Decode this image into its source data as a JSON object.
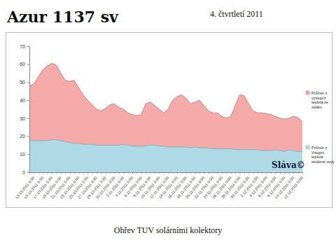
{
  "chart_data": {
    "type": "area",
    "title": "Azur 1137 sv",
    "subtitle": "4. čtvrtletí 2011",
    "x_label": "Ohřev TUV solárními kolektory",
    "annotation": "Sláva©",
    "categories": [
      "13.10.2011 0:00",
      null,
      "15.10.2011 0:00",
      null,
      "17.10.2011 0:00",
      null,
      "19.10.2011 0:00",
      null,
      "21.10.2011 0:00",
      null,
      "23.10.2011 0:00",
      null,
      "25.10.2011 0:00",
      null,
      "27.10.2011 0:00",
      null,
      "29.10.2011 0:00",
      null,
      "31.10.2011 0:00",
      null,
      "2.11.2011 0:00",
      null,
      "4.11.2011 0:00",
      null,
      "6.11.2011 0:00",
      null,
      "8.11.2011 0:00",
      null,
      "10.11.2011 0:00",
      null,
      "12.11.2011 0:00",
      null,
      "14.11.2011 0:00",
      null,
      "16.11.2011 0:00",
      null,
      "18.11.2011 0:00",
      null,
      "20.11.2011 0:00",
      null,
      "22.11.2011 0:00",
      null,
      "24.11.2011 0:00",
      null,
      "26.11.2011 0:00",
      null,
      "28.11.2011 0:00",
      null,
      "30.11.2011 0:00",
      null,
      "2.12.2011 0:00",
      null,
      "4.12.2011 0:00",
      null,
      "6.12.2011 0:00",
      null,
      "8.12.2011 0:00",
      null,
      "10.12.2011 0:00",
      null,
      "12.12.2011 0:00",
      null
    ],
    "series": [
      {
        "name": "Průměr z výstupní teplota ze soláru",
        "color": "#f2a5a3",
        "values": [
          48,
          49,
          53,
          57,
          59,
          60.5,
          59.5,
          55,
          51,
          50.5,
          51,
          47,
          43,
          40,
          37.5,
          35,
          34,
          35.5,
          37.5,
          38,
          36,
          35,
          33,
          32,
          31.5,
          32,
          38,
          39,
          37,
          35,
          33,
          35,
          40,
          42,
          43,
          41,
          38,
          39,
          40,
          37,
          34,
          33,
          33,
          31,
          30,
          31,
          37,
          43,
          42.5,
          38,
          34,
          33,
          33,
          32.5,
          32,
          31,
          30,
          29.5,
          30,
          31,
          30.5,
          28
        ]
      },
      {
        "name": "Průměr z Vstupní teplota studené vody",
        "color": "#a9dce8",
        "values": [
          17.5,
          17.5,
          17.5,
          17.5,
          17.5,
          18,
          18,
          17.5,
          17,
          16.5,
          16,
          16,
          15.5,
          15.5,
          15.5,
          15,
          15,
          15,
          15,
          15,
          15,
          15.5,
          15,
          14.5,
          14.5,
          14.5,
          14.5,
          15,
          15,
          14.5,
          14.5,
          14,
          14,
          14,
          14,
          14,
          13.5,
          14,
          13.5,
          13.5,
          13.5,
          13,
          13,
          13,
          13,
          13,
          12.5,
          12.5,
          12.5,
          12.5,
          12.5,
          12.5,
          12,
          12,
          12,
          12.5,
          12,
          11.5,
          12.5,
          12,
          11.5,
          11.5
        ]
      }
    ],
    "ylim": [
      0,
      70
    ],
    "yticks": [
      0,
      10,
      20,
      30,
      40,
      50,
      60,
      70
    ],
    "grid": false,
    "legend": "right"
  }
}
